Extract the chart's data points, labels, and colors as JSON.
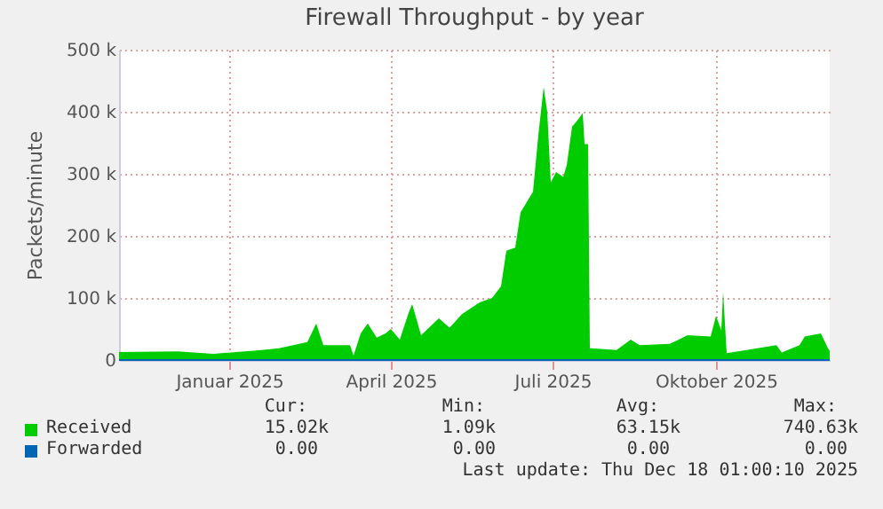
{
  "chart_data": {
    "type": "area",
    "title": "Firewall Throughput - by year",
    "ylabel": "Packets/minute",
    "xlim": [
      "2024-11-13",
      "2025-12-18"
    ],
    "xticks": [
      {
        "value": "2025-01-14",
        "label": "Januar 2025"
      },
      {
        "value": "2025-04-15",
        "label": "April 2025"
      },
      {
        "value": "2025-07-15",
        "label": "Juli 2025"
      },
      {
        "value": "2025-10-15",
        "label": "Oktober 2025"
      }
    ],
    "ylim": [
      0,
      500000
    ],
    "yticks": [
      0,
      {
        "value": 100000,
        "label": "100 k"
      },
      {
        "value": 200000,
        "label": "200 k"
      },
      {
        "value": 300000,
        "label": "300 k"
      },
      {
        "value": 400000,
        "label": "400 k"
      },
      {
        "value": 500000,
        "label": "500 k"
      }
    ],
    "grid": true,
    "legend": "bottom left",
    "series": [
      {
        "name": "Received",
        "color": "#00cc00",
        "x": [
          "2024-11-13",
          "2024-12-16",
          "2025-01-05",
          "2025-02-01",
          "2025-02-11",
          "2025-02-27",
          "2025-03-04",
          "2025-03-08",
          "2025-03-23",
          "2025-03-25",
          "2025-03-29",
          "2025-04-02",
          "2025-04-07",
          "2025-04-12",
          "2025-04-15",
          "2025-04-20",
          "2025-04-25",
          "2025-04-27",
          "2025-05-02",
          "2025-05-12",
          "2025-05-18",
          "2025-05-25",
          "2025-06-04",
          "2025-06-11",
          "2025-06-16",
          "2025-06-19",
          "2025-06-24",
          "2025-06-27",
          "2025-07-04",
          "2025-07-07",
          "2025-07-10",
          "2025-07-12",
          "2025-07-14",
          "2025-07-17",
          "2025-07-21",
          "2025-07-23",
          "2025-07-26",
          "2025-07-29",
          "2025-08-01",
          "2025-08-02",
          "2025-08-04",
          "2025-08-05",
          "2025-08-06",
          "2025-08-20",
          "2025-08-28",
          "2025-09-02",
          "2025-09-19",
          "2025-09-29",
          "2025-10-12",
          "2025-10-15",
          "2025-10-18",
          "2025-10-19",
          "2025-10-21",
          "2025-11-01",
          "2025-11-18",
          "2025-11-21",
          "2025-12-01",
          "2025-12-04",
          "2025-12-13",
          "2025-12-17",
          "2025-12-18"
        ],
        "values": [
          13000,
          14000,
          10000,
          16000,
          19000,
          29000,
          59000,
          24000,
          24000,
          7000,
          43000,
          59000,
          36000,
          43000,
          50000,
          33000,
          76000,
          90000,
          40000,
          67000,
          52000,
          74000,
          93000,
          100000,
          119000,
          176000,
          181000,
          238000,
          271000,
          362000,
          440000,
          400000,
          286000,
          303000,
          295000,
          314000,
          376000,
          386000,
          398000,
          348000,
          348000,
          19000,
          19000,
          16000,
          33000,
          24000,
          26000,
          40000,
          38000,
          71000,
          48000,
          110000,
          11000,
          16000,
          24000,
          12000,
          24000,
          38000,
          43000,
          19000,
          15000
        ]
      },
      {
        "name": "Forwarded",
        "type": "line",
        "color": "#0066b3",
        "x": [
          "2024-11-13",
          "2025-12-18"
        ],
        "values": [
          0,
          0
        ]
      }
    ],
    "annotations": [
      "Cur:",
      "Min:",
      "Avg:",
      "Max:",
      "15.02k",
      "1.09k",
      "63.15k",
      "740.63k",
      "0.00",
      "0.00",
      "0.00",
      "0.00",
      "Last update: Thu Dec 18 01:00:10 2025"
    ]
  }
}
